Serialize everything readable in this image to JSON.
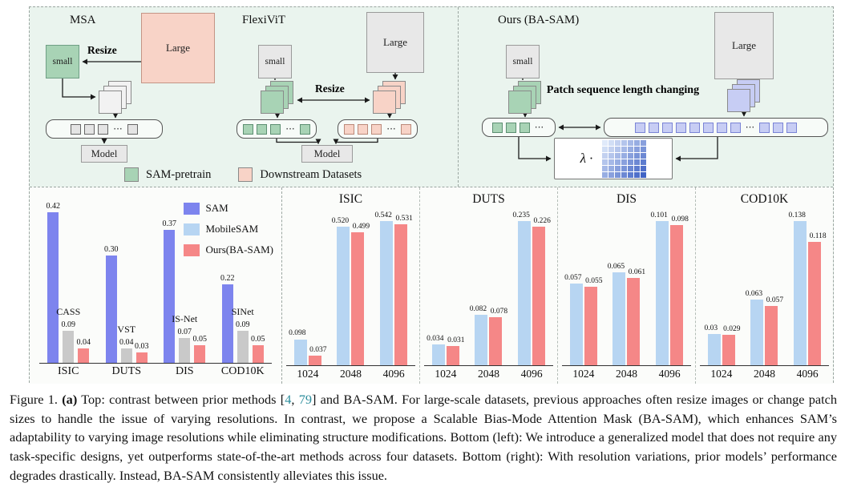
{
  "colors": {
    "sam": "#7d84ee",
    "mobilesam": "#b7d5f2",
    "ours": "#f58787",
    "sota": "#c9c9c9",
    "pretrain_green": "#a8d3b5",
    "downstream_pink": "#f8d3c7"
  },
  "diagram": {
    "ellipsis": "···",
    "panels": {
      "msa": {
        "title": "MSA",
        "large": "Large",
        "small": "small",
        "resize": "Resize",
        "model": "Model"
      },
      "flexivit": {
        "title": "FlexiViT",
        "large": "Large",
        "small": "small",
        "resize": "Resize",
        "model": "Model"
      },
      "ours": {
        "title": "Ours (BA-SAM)",
        "large": "Large",
        "small": "small",
        "patch_text": "Patch sequence length changing",
        "lambda_label": "λ ·"
      }
    },
    "legend": [
      {
        "label": "SAM-pretrain",
        "s": "pretrain_green"
      },
      {
        "label": "Downstream Datasets",
        "s": "downstream_pink"
      }
    ]
  },
  "chart_data": {
    "left": {
      "type": "bar",
      "categories": [
        "ISIC",
        "DUTS",
        "DIS",
        "COD10K"
      ],
      "legend": [
        {
          "label": "SAM",
          "s": "sam"
        },
        {
          "label": "MobileSAM",
          "s": "mobilesam"
        },
        {
          "label": "Ours(BA-SAM)",
          "s": "ours"
        }
      ],
      "groups": [
        [
          {
            "v": "0.42",
            "s": "sam"
          },
          {
            "v": "0.09",
            "s": "sota",
            "m": "CASS"
          },
          {
            "v": "0.04",
            "s": "ours"
          }
        ],
        [
          {
            "v": "0.30",
            "s": "sam"
          },
          {
            "v": "0.04",
            "s": "sota",
            "m": "VST"
          },
          {
            "v": "0.03",
            "s": "ours"
          }
        ],
        [
          {
            "v": "0.37",
            "s": "sam"
          },
          {
            "v": "0.07",
            "s": "sota",
            "m": "IS-Net"
          },
          {
            "v": "0.05",
            "s": "ours"
          }
        ],
        [
          {
            "v": "0.22",
            "s": "sam"
          },
          {
            "v": "0.09",
            "s": "sota",
            "m": "SINet"
          },
          {
            "v": "0.05",
            "s": "ours"
          }
        ]
      ]
    },
    "right": [
      {
        "type": "bar",
        "title": "ISIC",
        "categories": [
          "1024",
          "2048",
          "4096"
        ],
        "groups": [
          [
            {
              "v": "0.098",
              "s": "mobilesam"
            },
            {
              "v": "0.037",
              "s": "ours"
            }
          ],
          [
            {
              "v": "0.520",
              "s": "mobilesam"
            },
            {
              "v": "0.499",
              "s": "ours"
            }
          ],
          [
            {
              "v": "0.542",
              "s": "mobilesam"
            },
            {
              "v": "0.531",
              "s": "ours"
            }
          ]
        ]
      },
      {
        "type": "bar",
        "title": "DUTS",
        "categories": [
          "1024",
          "2048",
          "4096"
        ],
        "groups": [
          [
            {
              "v": "0.034",
              "s": "mobilesam"
            },
            {
              "v": "0.031",
              "s": "ours"
            }
          ],
          [
            {
              "v": "0.082",
              "s": "mobilesam"
            },
            {
              "v": "0.078",
              "s": "ours"
            }
          ],
          [
            {
              "v": "0.235",
              "s": "mobilesam"
            },
            {
              "v": "0.226",
              "s": "ours"
            }
          ]
        ]
      },
      {
        "type": "bar",
        "title": "DIS",
        "categories": [
          "1024",
          "2048",
          "4096"
        ],
        "groups": [
          [
            {
              "v": "0.057",
              "s": "mobilesam"
            },
            {
              "v": "0.055",
              "s": "ours"
            }
          ],
          [
            {
              "v": "0.065",
              "s": "mobilesam"
            },
            {
              "v": "0.061",
              "s": "ours"
            }
          ],
          [
            {
              "v": "0.101",
              "s": "mobilesam"
            },
            {
              "v": "0.098",
              "s": "ours"
            }
          ]
        ]
      },
      {
        "type": "bar",
        "title": "COD10K",
        "categories": [
          "1024",
          "2048",
          "4096"
        ],
        "groups": [
          [
            {
              "v": "0.03",
              "s": "mobilesam"
            },
            {
              "v": "0.029",
              "s": "ours"
            }
          ],
          [
            {
              "v": "0.063",
              "s": "mobilesam"
            },
            {
              "v": "0.057",
              "s": "ours"
            }
          ],
          [
            {
              "v": "0.138",
              "s": "mobilesam"
            },
            {
              "v": "0.118",
              "s": "ours"
            }
          ]
        ]
      }
    ]
  },
  "caption": {
    "cite_color": "#2c8d9c",
    "segments": [
      {
        "text": "Figure 1. "
      },
      {
        "text": "(a)",
        "bold": true
      },
      {
        "text": " Top: contrast between prior methods ["
      },
      {
        "text": "4",
        "cite": true
      },
      {
        "text": ", "
      },
      {
        "text": "79",
        "cite": true
      },
      {
        "text": "] and BA-SAM. For large-scale datasets, previous approaches often resize images or change patch sizes to handle the issue of varying resolutions. In contrast, we propose a Scalable Bias-Mode Attention Mask (BA-SAM), which enhances SAM’s adaptability to varying image resolutions while eliminating structure modifications. Bottom (left): We introduce a generalized model that does not require any task-specific designs, yet outperforms state-of-the-art methods across four datasets. Bottom (right): With resolution variations, prior models’ performance degrades drastically. Instead, BA-SAM consistently alleviates this issue."
      }
    ]
  }
}
